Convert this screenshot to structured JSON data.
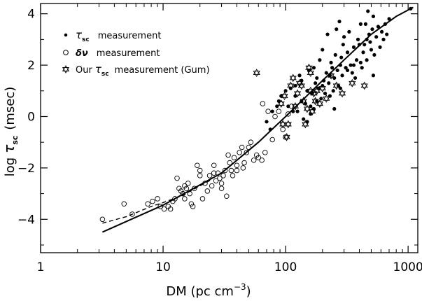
{
  "chart_data": {
    "type": "scatter",
    "xlabel": "DM (pc cm",
    "xlabel_sup": "−3",
    "xlabel_close": ")",
    "ylabel_prefix": "log",
    "ylabel_tau": "τ",
    "ylabel_sub": "sc",
    "ylabel_unit": "(msec)",
    "x_scale": "log",
    "xlim": [
      1,
      1200
    ],
    "ylim": [
      -5.3,
      4.4
    ],
    "x_ticks": [
      1,
      10,
      100,
      1000
    ],
    "x_tick_labels": [
      "1",
      "10",
      "100",
      "1000"
    ],
    "y_ticks": [
      -4,
      -2,
      0,
      2,
      4
    ],
    "y_tick_labels": [
      "−4",
      "−2",
      "0",
      "2",
      "4"
    ],
    "legend_position": "top-left",
    "legend": [
      {
        "marker": "dot",
        "symbol": "τ",
        "sub": "sc",
        "text": "measurement"
      },
      {
        "marker": "circle",
        "symbol": "δν",
        "sub": "",
        "text": "measurement"
      },
      {
        "marker": "star",
        "prefix": "Our",
        "symbol": "τ",
        "sub": "sc",
        "text": "measurement (Gum)"
      }
    ],
    "series": [
      {
        "name": "τsc measurement",
        "marker": "dot",
        "points": [
          [
            70,
            -0.2
          ],
          [
            75,
            -0.5
          ],
          [
            78,
            0.2
          ],
          [
            85,
            0.4
          ],
          [
            88,
            0.6
          ],
          [
            92,
            0.8
          ],
          [
            100,
            1.0
          ],
          [
            105,
            0.4
          ],
          [
            110,
            1.1
          ],
          [
            115,
            0.2
          ],
          [
            120,
            0.8
          ],
          [
            125,
            0.2
          ],
          [
            130,
            1.6
          ],
          [
            135,
            0.6
          ],
          [
            140,
            -0.1
          ],
          [
            145,
            0.5
          ],
          [
            150,
            1.0
          ],
          [
            155,
            1.8
          ],
          [
            160,
            0.1
          ],
          [
            165,
            0.9
          ],
          [
            170,
            0.3
          ],
          [
            175,
            1.3
          ],
          [
            180,
            0.6
          ],
          [
            185,
            1.1
          ],
          [
            190,
            2.2
          ],
          [
            195,
            0.7
          ],
          [
            200,
            2.6
          ],
          [
            205,
            1.4
          ],
          [
            210,
            0.9
          ],
          [
            215,
            1.7
          ],
          [
            220,
            3.2
          ],
          [
            225,
            1.3
          ],
          [
            230,
            0.8
          ],
          [
            235,
            2.1
          ],
          [
            240,
            1.9
          ],
          [
            245,
            1.0
          ],
          [
            250,
            1.5
          ],
          [
            255,
            2.4
          ],
          [
            260,
            3.4
          ],
          [
            265,
            1.8
          ],
          [
            270,
            1.2
          ],
          [
            275,
            3.7
          ],
          [
            280,
            2.0
          ],
          [
            285,
            2.3
          ],
          [
            290,
            1.6
          ],
          [
            295,
            2.8
          ],
          [
            300,
            3.1
          ],
          [
            310,
            1.9
          ],
          [
            320,
            2.5
          ],
          [
            330,
            3.3
          ],
          [
            340,
            2.0
          ],
          [
            350,
            1.7
          ],
          [
            360,
            2.7
          ],
          [
            370,
            1.5
          ],
          [
            380,
            2.2
          ],
          [
            390,
            3.0
          ],
          [
            400,
            2.8
          ],
          [
            410,
            3.6
          ],
          [
            420,
            1.9
          ],
          [
            430,
            2.5
          ],
          [
            440,
            2.8
          ],
          [
            450,
            3.6
          ],
          [
            460,
            3.0
          ],
          [
            470,
            4.1
          ],
          [
            480,
            3.2
          ],
          [
            490,
            2.9
          ],
          [
            500,
            2.6
          ],
          [
            510,
            3.4
          ],
          [
            520,
            3.9
          ],
          [
            530,
            2.4
          ],
          [
            550,
            3.1
          ],
          [
            570,
            3.5
          ],
          [
            590,
            2.7
          ],
          [
            610,
            3.3
          ],
          [
            630,
            3.0
          ],
          [
            650,
            3.6
          ],
          [
            670,
            3.2
          ],
          [
            700,
            3.8
          ],
          [
            1050,
            4.2
          ],
          [
            120,
            1.2
          ],
          [
            135,
            1.4
          ],
          [
            150,
            -0.2
          ],
          [
            160,
            0.4
          ],
          [
            170,
            1.9
          ],
          [
            180,
            1.5
          ],
          [
            200,
            1.2
          ],
          [
            230,
            1.6
          ],
          [
            250,
            0.3
          ],
          [
            280,
            1.1
          ],
          [
            320,
            1.8
          ],
          [
            360,
            2.0
          ],
          [
            410,
            2.1
          ],
          [
            460,
            2.2
          ],
          [
            520,
            1.6
          ]
        ]
      },
      {
        "name": "δν measurement",
        "marker": "circle",
        "points": [
          [
            3.2,
            -4.0
          ],
          [
            4.8,
            -3.4
          ],
          [
            5.6,
            -3.8
          ],
          [
            7.5,
            -3.4
          ],
          [
            8.2,
            -3.3
          ],
          [
            9.0,
            -3.2
          ],
          [
            9.5,
            -3.5
          ],
          [
            10.2,
            -3.6
          ],
          [
            11.0,
            -3.5
          ],
          [
            11.5,
            -3.6
          ],
          [
            12.0,
            -3.3
          ],
          [
            12.5,
            -3.2
          ],
          [
            13.0,
            -2.4
          ],
          [
            13.5,
            -2.8
          ],
          [
            14.0,
            -2.9
          ],
          [
            14.5,
            -3.0
          ],
          [
            15.0,
            -2.7
          ],
          [
            15.5,
            -2.8
          ],
          [
            16.0,
            -2.6
          ],
          [
            16.5,
            -3.0
          ],
          [
            17.0,
            -3.4
          ],
          [
            17.5,
            -3.5
          ],
          [
            18.0,
            -2.8
          ],
          [
            19.0,
            -1.9
          ],
          [
            20.0,
            -2.3
          ],
          [
            21.0,
            -3.2
          ],
          [
            22.0,
            -2.6
          ],
          [
            23.0,
            -2.9
          ],
          [
            24.0,
            -2.3
          ],
          [
            25.0,
            -2.7
          ],
          [
            26.0,
            -2.2
          ],
          [
            27.0,
            -2.5
          ],
          [
            28.0,
            -2.2
          ],
          [
            29.0,
            -2.4
          ],
          [
            30.0,
            -2.6
          ],
          [
            31.0,
            -2.3
          ],
          [
            32.0,
            -2.1
          ],
          [
            33.0,
            -3.1
          ],
          [
            34.0,
            -1.5
          ],
          [
            35.0,
            -1.8
          ],
          [
            36.0,
            -2.1
          ],
          [
            37.0,
            -2.3
          ],
          [
            38.0,
            -1.6
          ],
          [
            40.0,
            -1.9
          ],
          [
            42.0,
            -1.4
          ],
          [
            44.0,
            -1.2
          ],
          [
            46.0,
            -1.8
          ],
          [
            48.0,
            -1.4
          ],
          [
            50.0,
            -1.2
          ],
          [
            52.0,
            -1.0
          ],
          [
            55.0,
            -1.7
          ],
          [
            58.0,
            -1.5
          ],
          [
            60.0,
            -1.6
          ],
          [
            64.0,
            -1.7
          ],
          [
            68.0,
            -1.4
          ],
          [
            72.0,
            0.2
          ],
          [
            78.0,
            -0.9
          ],
          [
            82.0,
            0.0
          ],
          [
            88.0,
            0.2
          ],
          [
            95.0,
            -0.5
          ],
          [
            100.0,
            -0.8
          ],
          [
            105.0,
            0.1
          ],
          [
            112.0,
            0.4
          ],
          [
            65.0,
            0.5
          ],
          [
            45.0,
            -2.0
          ],
          [
            30.0,
            -2.8
          ],
          [
            20.0,
            -2.1
          ],
          [
            15.0,
            -3.2
          ],
          [
            26.0,
            -1.9
          ],
          [
            40.0,
            -2.1
          ]
        ]
      },
      {
        "name": "Our τsc measurement (Gum)",
        "marker": "star",
        "points": [
          [
            58,
            1.7
          ],
          [
            92,
            0.5
          ],
          [
            95,
            -0.3
          ],
          [
            98,
            0.8
          ],
          [
            102,
            -0.8
          ],
          [
            105,
            -0.3
          ],
          [
            110,
            1.2
          ],
          [
            115,
            1.5
          ],
          [
            120,
            0.4
          ],
          [
            125,
            0.9
          ],
          [
            130,
            1.3
          ],
          [
            135,
            1.2
          ],
          [
            140,
            0.6
          ],
          [
            145,
            -0.3
          ],
          [
            150,
            0.3
          ],
          [
            155,
            1.9
          ],
          [
            160,
            1.7
          ],
          [
            165,
            0.2
          ],
          [
            170,
            0.9
          ],
          [
            175,
            0.6
          ],
          [
            180,
            1.0
          ],
          [
            190,
            0.5
          ],
          [
            200,
            1.1
          ],
          [
            215,
            0.7
          ],
          [
            235,
            1.6
          ],
          [
            260,
            1.2
          ],
          [
            290,
            0.9
          ],
          [
            350,
            1.3
          ],
          [
            440,
            1.2
          ],
          [
            160,
            1.0
          ]
        ]
      }
    ],
    "fits": [
      {
        "style": "solid",
        "points": [
          [
            3.2,
            -4.5
          ],
          [
            10,
            -3.45
          ],
          [
            30,
            -2.2
          ],
          [
            60,
            -1.0
          ],
          [
            100,
            0.0
          ],
          [
            200,
            1.4
          ],
          [
            300,
            2.2
          ],
          [
            500,
            3.2
          ],
          [
            800,
            3.9
          ],
          [
            1100,
            4.25
          ]
        ]
      },
      {
        "style": "dashed",
        "points": [
          [
            3.2,
            -4.15
          ],
          [
            5,
            -3.9
          ],
          [
            8,
            -3.5
          ],
          [
            10,
            -3.35
          ],
          [
            14,
            -3.1
          ],
          [
            20,
            -2.7
          ],
          [
            25,
            -2.45
          ]
        ]
      }
    ]
  }
}
